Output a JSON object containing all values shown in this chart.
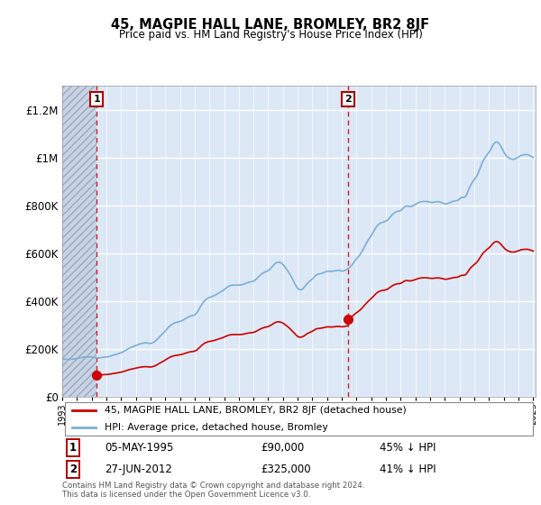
{
  "title": "45, MAGPIE HALL LANE, BROMLEY, BR2 8JF",
  "subtitle": "Price paid vs. HM Land Registry's House Price Index (HPI)",
  "ylim": [
    0,
    1300000
  ],
  "yticks": [
    0,
    200000,
    400000,
    600000,
    800000,
    1000000,
    1200000
  ],
  "ytick_labels": [
    "£0",
    "£200K",
    "£400K",
    "£600K",
    "£800K",
    "£1M",
    "£1.2M"
  ],
  "sale1_year": 1995,
  "sale1_month": 5,
  "sale1_price": 90000,
  "sale2_year": 2012,
  "sale2_month": 6,
  "sale2_price": 325000,
  "legend_line1": "45, MAGPIE HALL LANE, BROMLEY, BR2 8JF (detached house)",
  "legend_line2": "HPI: Average price, detached house, Bromley",
  "annotation1": [
    "1",
    "05-MAY-1995",
    "£90,000",
    "45% ↓ HPI"
  ],
  "annotation2": [
    "2",
    "27-JUN-2012",
    "£325,000",
    "41% ↓ HPI"
  ],
  "footer": "Contains HM Land Registry data © Crown copyright and database right 2024.\nThis data is licensed under the Open Government Licence v3.0.",
  "line_color_property": "#cc0000",
  "line_color_hpi": "#7bafd4",
  "bg_color": "#dce8f5",
  "grid_color": "#ffffff",
  "hatch_color": "#b0b8c8",
  "title_font": "DejaVu Sans",
  "x_start_year": 1993,
  "x_end_year": 2025
}
